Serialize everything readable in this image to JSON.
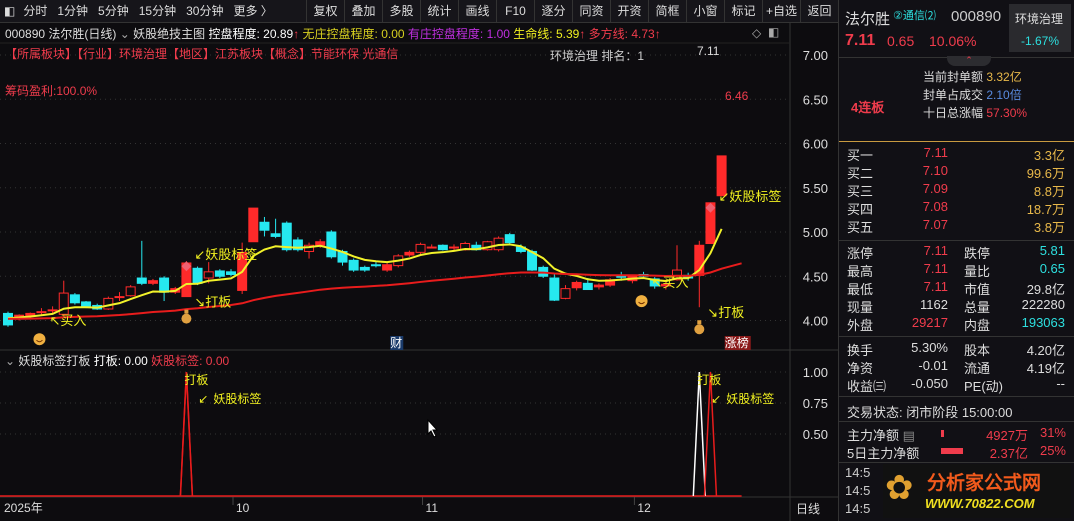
{
  "toolbar": {
    "items": [
      "分时",
      "1分钟",
      "5分钟",
      "15分钟",
      "30分钟",
      "更多 〉"
    ],
    "buttons": [
      "复权",
      "叠加",
      "多股",
      "统计",
      "画线",
      "F10",
      "逐分",
      "同资",
      "开资",
      "简框",
      "小窗",
      "标记",
      "+自选",
      "返回"
    ]
  },
  "info": {
    "code_name": "000890 法尔胜(日线)",
    "indicator": "妖股绝技主图",
    "ctrl": "控盘程度: 20.89",
    "no_ctrl": "无庄控盘程度: 0.00",
    "has_ctrl": "有庄控盘程度: 1.00",
    "life": "生命线: 5.39",
    "multi": "多方线: 4.73",
    "sectors": "【所属板块】【行业】环境治理【地区】江苏板块【概念】节能环保 光通信",
    "chip": "筹码盈利:100.0%",
    "rank": "环境治理  排名：1",
    "last_price": "7.11",
    "prev_high": "6.46"
  },
  "chart_data": {
    "type": "candlestick",
    "ylim": [
      3.85,
      7.2
    ],
    "yticks": [
      "7.00",
      "6.50",
      "6.00",
      "5.50",
      "5.00",
      "4.50",
      "4.00"
    ],
    "ohlc": [
      [
        4.08,
        4.1,
        3.93,
        3.95
      ],
      [
        4.03,
        4.07,
        4.0,
        4.06
      ],
      [
        4.05,
        4.09,
        4.03,
        4.08
      ],
      [
        4.1,
        4.14,
        4.06,
        4.1
      ],
      [
        4.12,
        4.16,
        4.08,
        4.12
      ],
      [
        4.07,
        4.45,
        4.05,
        4.31
      ],
      [
        4.29,
        4.31,
        4.18,
        4.2
      ],
      [
        4.21,
        4.22,
        4.14,
        4.15
      ],
      [
        4.17,
        4.19,
        4.12,
        4.13
      ],
      [
        4.13,
        4.27,
        4.12,
        4.25
      ],
      [
        4.27,
        4.32,
        4.22,
        4.27
      ],
      [
        4.28,
        4.4,
        4.27,
        4.38
      ],
      [
        4.48,
        4.9,
        4.4,
        4.42
      ],
      [
        4.42,
        4.47,
        4.4,
        4.45
      ],
      [
        4.48,
        4.5,
        4.22,
        4.32
      ],
      [
        4.32,
        4.38,
        4.3,
        4.36
      ],
      [
        4.27,
        4.67,
        4.27,
        4.65
      ],
      [
        4.59,
        4.61,
        4.4,
        4.42
      ],
      [
        4.48,
        4.66,
        4.42,
        4.55
      ],
      [
        4.56,
        4.58,
        4.48,
        4.5
      ],
      [
        4.55,
        4.58,
        4.5,
        4.52
      ],
      [
        4.34,
        4.88,
        4.3,
        4.77
      ],
      [
        4.89,
        5.27,
        4.89,
        5.27
      ],
      [
        5.11,
        5.17,
        4.95,
        5.02
      ],
      [
        4.98,
        5.15,
        4.93,
        4.95
      ],
      [
        5.1,
        5.12,
        4.78,
        4.8
      ],
      [
        4.91,
        4.94,
        4.78,
        4.8
      ],
      [
        4.78,
        4.88,
        4.7,
        4.85
      ],
      [
        4.85,
        4.92,
        4.82,
        4.89
      ],
      [
        5.0,
        5.02,
        4.7,
        4.72
      ],
      [
        4.78,
        4.8,
        4.62,
        4.66
      ],
      [
        4.68,
        4.7,
        4.55,
        4.57
      ],
      [
        4.6,
        4.62,
        4.55,
        4.57
      ],
      [
        4.63,
        4.66,
        4.6,
        4.62
      ],
      [
        4.57,
        4.66,
        4.55,
        4.63
      ],
      [
        4.62,
        4.75,
        4.6,
        4.73
      ],
      [
        4.74,
        4.79,
        4.72,
        4.77
      ],
      [
        4.77,
        4.88,
        4.75,
        4.86
      ],
      [
        4.83,
        4.86,
        4.82,
        4.83
      ],
      [
        4.85,
        4.86,
        4.79,
        4.8
      ],
      [
        4.83,
        4.86,
        4.78,
        4.83
      ],
      [
        4.8,
        4.89,
        4.79,
        4.87
      ],
      [
        4.85,
        4.89,
        4.79,
        4.8
      ],
      [
        4.8,
        4.9,
        4.79,
        4.89
      ],
      [
        4.8,
        4.95,
        4.78,
        4.93
      ],
      [
        4.97,
        4.99,
        4.87,
        4.88
      ],
      [
        4.83,
        4.86,
        4.76,
        4.78
      ],
      [
        4.78,
        4.8,
        4.56,
        4.57
      ],
      [
        4.6,
        4.62,
        4.48,
        4.5
      ],
      [
        4.48,
        4.52,
        4.22,
        4.23
      ],
      [
        4.25,
        4.4,
        4.24,
        4.36
      ],
      [
        4.37,
        4.45,
        4.34,
        4.43
      ],
      [
        4.42,
        4.48,
        4.35,
        4.35
      ],
      [
        4.38,
        4.42,
        4.35,
        4.4
      ],
      [
        4.4,
        4.48,
        4.38,
        4.46
      ],
      [
        4.5,
        4.55,
        4.45,
        4.49
      ],
      [
        4.45,
        4.52,
        4.42,
        4.51
      ],
      [
        4.52,
        4.55,
        4.49,
        4.5
      ],
      [
        4.47,
        4.49,
        4.36,
        4.39
      ],
      [
        4.39,
        4.44,
        4.35,
        4.41
      ],
      [
        4.46,
        4.85,
        4.45,
        4.57
      ],
      [
        4.51,
        4.54,
        4.45,
        4.48
      ],
      [
        4.51,
        4.9,
        4.15,
        4.85
      ],
      [
        4.87,
        5.33,
        4.87,
        5.33
      ],
      [
        5.41,
        5.86,
        5.41,
        5.86
      ]
    ],
    "signals": [
      {
        "label": "妖股标签",
        "index": 16
      },
      {
        "label": "打板",
        "index": 16
      },
      {
        "label": "买入",
        "index": 3
      },
      {
        "label": "买入",
        "index": 57
      },
      {
        "label": "妖股标签",
        "index": 63
      },
      {
        "label": "打板",
        "index": 62
      }
    ],
    "xticks": [
      {
        "label": "2025年",
        "index": 0
      },
      {
        "label": "10",
        "index": 20
      },
      {
        "label": "11",
        "index": 37
      },
      {
        "label": "12",
        "index": 56
      }
    ],
    "markers": [
      {
        "label": "财",
        "index": 35
      },
      {
        "label": "涨榜",
        "index": 65
      }
    ],
    "colors": {
      "up": "#ff2a2a",
      "down": "#26e8f0",
      "ma_short": "#f2f22a",
      "ma_long": "#e81c1c"
    }
  },
  "sub": {
    "title": "妖股标签打板",
    "daban": "打板: 0.00",
    "yaogu": "妖股标签: 0.00",
    "yticks": [
      "1.00",
      "0.75",
      "0.50"
    ],
    "daban_series_peaks": [
      16,
      62
    ],
    "yaogu_series_peaks": [
      16,
      63
    ],
    "label_daban": "打板",
    "label_yaogu": "妖股标签",
    "period": "日线"
  },
  "right": {
    "name": "法尔胜",
    "badge": "②通信⑵",
    "code": "000890",
    "sector": "环境治理",
    "sector_pct": "-1.67%",
    "price": "7.11",
    "change": "0.65",
    "pct": "10.06%",
    "streak": "4连板",
    "seal_amt_label": "当前封单额",
    "seal_amt": "3.32亿",
    "seal_ratio_label": "封单占成交",
    "seal_ratio": "2.10倍",
    "ten_day_label": "十日总涨幅",
    "ten_day": "57.30%",
    "bids": [
      {
        "l": "买一",
        "p": "7.11",
        "v": "3.3亿"
      },
      {
        "l": "买二",
        "p": "7.10",
        "v": "99.6万"
      },
      {
        "l": "买三",
        "p": "7.09",
        "v": "8.8万"
      },
      {
        "l": "买四",
        "p": "7.08",
        "v": "18.7万"
      },
      {
        "l": "买五",
        "p": "7.07",
        "v": "3.8万"
      }
    ],
    "stats": [
      [
        "涨停",
        "7.11",
        "跌停",
        "5.81"
      ],
      [
        "最高",
        "7.11",
        "量比",
        "0.65"
      ],
      [
        "最低",
        "7.11",
        "市值",
        "29.8亿"
      ],
      [
        "现量",
        "1162",
        "总量",
        "222280"
      ],
      [
        "外盘",
        "29217",
        "内盘",
        "193063"
      ]
    ],
    "stats2": [
      [
        "换手",
        "5.30%",
        "股本",
        "4.20亿"
      ],
      [
        "净资",
        "-0.01",
        "流通",
        "4.19亿"
      ],
      [
        "收益㈢",
        "-0.050",
        "PE(动)",
        "--"
      ]
    ],
    "status": "交易状态: 闭市阶段 15:00:00",
    "flow1_label": "主力净额",
    "flow1": "4927万",
    "flow1_pct": "31%",
    "flow2_label": "5日主力净额",
    "flow2": "2.37亿",
    "flow2_pct": "25%",
    "ticks": [
      "14:5",
      "14:5",
      "14:5"
    ],
    "logo": "分析家公式网",
    "logo_url": "WWW.70822.COM"
  }
}
